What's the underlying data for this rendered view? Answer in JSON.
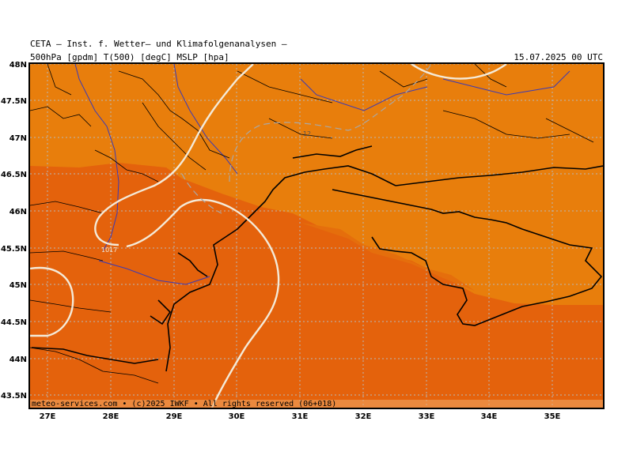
{
  "header": {
    "title": "CETA — Inst. f. Wetter— und Klimafolgenanalysen —",
    "params": "500hPa [gpdm] T(500) [degC] MSLP [hpa]",
    "valid_time": "15.07.2025 00 UTC"
  },
  "footer": {
    "credit": "meteo-services.com • (c)2025 IWKF • All rights reserved (06+018)"
  },
  "axes": {
    "lat_labels": [
      "48N",
      "47.5N",
      "47N",
      "46.5N",
      "46N",
      "45.5N",
      "45N",
      "44.5N",
      "44N",
      "43.5N"
    ],
    "lon_labels": [
      "27E",
      "28E",
      "29E",
      "30E",
      "31E",
      "32E",
      "33E",
      "34E",
      "35E"
    ]
  },
  "contour_labels": {
    "temp_label": "-12",
    "pressure_label": "1017"
  },
  "colors": {
    "fill_light": "#e87e0c",
    "fill_dark": "#e4620c",
    "coast": "#000000",
    "rivers": "#3a3ab8",
    "isobar": "#f4ead8",
    "grid": "#b8b8b8"
  }
}
